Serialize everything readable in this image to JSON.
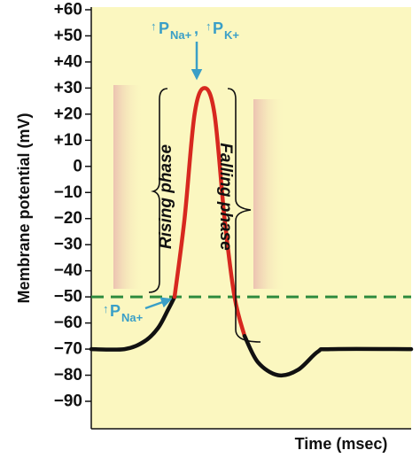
{
  "chart_data": {
    "type": "line",
    "ylabel": "Membrane potential (mV)",
    "xlabel": "Time (msec)",
    "ylim": [
      -90,
      60
    ],
    "yticks": [
      "+60",
      "+50",
      "+40",
      "+30",
      "+20",
      "+10",
      "0",
      "−10",
      "−20",
      "−30",
      "−40",
      "−50",
      "−60",
      "−70",
      "−80",
      "−90"
    ],
    "ytick_values": [
      60,
      50,
      40,
      30,
      20,
      10,
      0,
      -10,
      -20,
      -30,
      -40,
      -50,
      -60,
      -70,
      -80,
      -90
    ],
    "threshold": -50,
    "resting_potential": -70,
    "peak": 30,
    "undershoot": -80,
    "series": [
      {
        "values": [
          {
            "t": 0.0,
            "mV": -70
          },
          {
            "t": 0.5,
            "mV": -70
          },
          {
            "t": 0.8,
            "mV": -67
          },
          {
            "t": 1.0,
            "mV": -62
          },
          {
            "t": 1.15,
            "mV": -55
          },
          {
            "t": 1.25,
            "mV": -50
          },
          {
            "t": 1.4,
            "mV": -20
          },
          {
            "t": 1.55,
            "mV": 20
          },
          {
            "t": 1.7,
            "mV": 30
          },
          {
            "t": 1.85,
            "mV": 20
          },
          {
            "t": 2.0,
            "mV": -20
          },
          {
            "t": 2.15,
            "mV": -50
          },
          {
            "t": 2.3,
            "mV": -65
          },
          {
            "t": 2.5,
            "mV": -75
          },
          {
            "t": 2.8,
            "mV": -80
          },
          {
            "t": 3.1,
            "mV": -78
          },
          {
            "t": 3.4,
            "mV": -71
          },
          {
            "t": 3.6,
            "mV": -70
          },
          {
            "t": 4.8,
            "mV": -70
          }
        ]
      }
    ],
    "phases": [
      "Rising phase",
      "Falling phase"
    ],
    "annotations": {
      "peak_label": [
        "P",
        "Na+",
        ", ",
        "P",
        "K+"
      ],
      "threshold_label": [
        "P",
        "Na+"
      ]
    },
    "colors": {
      "background": "#fbf7c0",
      "trace": "#111111",
      "action_potential": "#d7281f",
      "threshold_line": "#2e8b3e",
      "annotation": "#3a9fc7"
    }
  }
}
